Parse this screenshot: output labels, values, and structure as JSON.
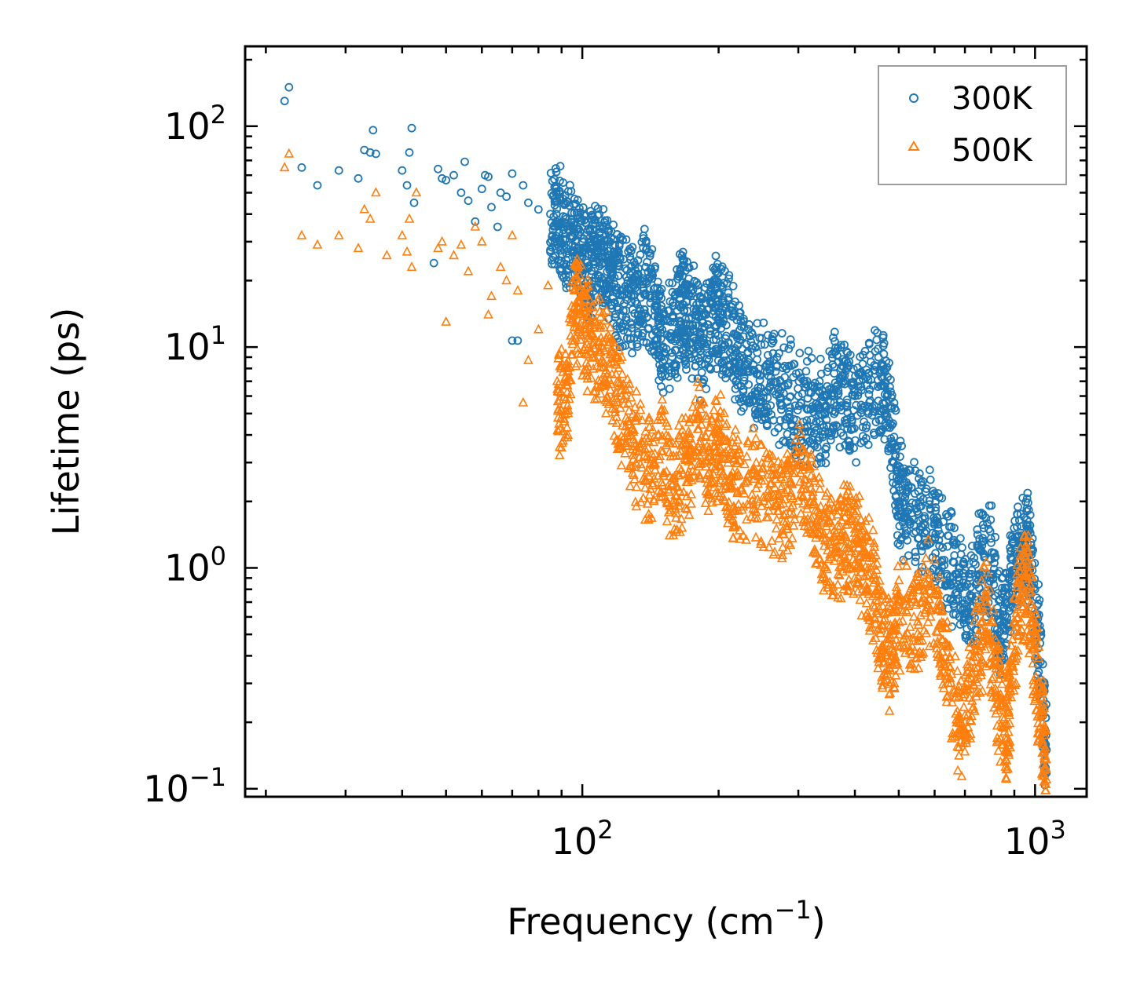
{
  "chart_data": {
    "type": "scatter",
    "title": "",
    "xlabel": "Frequency (cm",
    "xlabel_exponent": "−1",
    "xlabel_suffix": ")",
    "ylabel": "Lifetime (ps)",
    "xscale": "log",
    "yscale": "log",
    "xlim": [
      18,
      1300
    ],
    "ylim": [
      0.092,
      230
    ],
    "x_ticks": [
      {
        "value": 100,
        "base": "10",
        "exp": "2"
      },
      {
        "value": 1000,
        "base": "10",
        "exp": "3"
      }
    ],
    "y_ticks": [
      {
        "value": 0.1,
        "base": "10",
        "exp": "−1"
      },
      {
        "value": 1,
        "base": "10",
        "exp": "0"
      },
      {
        "value": 10,
        "base": "10",
        "exp": "1"
      },
      {
        "value": 100,
        "base": "10",
        "exp": "2"
      }
    ],
    "legend_position": "top-right",
    "series": [
      {
        "name": "300K",
        "marker": "circle-open",
        "color": "#1f77b4",
        "points": [
          [
            22,
            130
          ],
          [
            22.5,
            150
          ],
          [
            24,
            65
          ],
          [
            26,
            54
          ],
          [
            29,
            63
          ],
          [
            32,
            58
          ],
          [
            33,
            78
          ],
          [
            34,
            76
          ],
          [
            34.5,
            96
          ],
          [
            35,
            75
          ],
          [
            40,
            63
          ],
          [
            41,
            54
          ],
          [
            41.5,
            76
          ],
          [
            42,
            98
          ],
          [
            42.5,
            45
          ],
          [
            47,
            24
          ],
          [
            48,
            64
          ],
          [
            49,
            58
          ],
          [
            50,
            57
          ],
          [
            52,
            60
          ],
          [
            54,
            50
          ],
          [
            55,
            69
          ],
          [
            56,
            46
          ],
          [
            58,
            37
          ],
          [
            60,
            52
          ],
          [
            61,
            60
          ],
          [
            62,
            59
          ],
          [
            63,
            43
          ],
          [
            65,
            35
          ],
          [
            66,
            50
          ],
          [
            68,
            48
          ],
          [
            70,
            61
          ],
          [
            70,
            10.7
          ],
          [
            72,
            10.7
          ],
          [
            74,
            54
          ],
          [
            76,
            45
          ],
          [
            80,
            42
          ],
          [
            85,
            40
          ],
          [
            88,
            46
          ],
          [
            92,
            38
          ],
          [
            96,
            34
          ],
          [
            100,
            30
          ],
          [
            104,
            28
          ],
          [
            108,
            31
          ],
          [
            112,
            27
          ],
          [
            116,
            25
          ],
          [
            120,
            21
          ],
          [
            126,
            20
          ],
          [
            132,
            18
          ],
          [
            138,
            23
          ],
          [
            145,
            17
          ],
          [
            150,
            12
          ],
          [
            160,
            13
          ],
          [
            166,
            18
          ],
          [
            170,
            16
          ],
          [
            178,
            14
          ],
          [
            185,
            11
          ],
          [
            195,
            17
          ],
          [
            200,
            15
          ],
          [
            210,
            14
          ],
          [
            220,
            11
          ],
          [
            232,
            9.5
          ],
          [
            245,
            8
          ],
          [
            260,
            7.8
          ],
          [
            280,
            7.3
          ],
          [
            300,
            6
          ],
          [
            320,
            6.2
          ],
          [
            340,
            5.7
          ],
          [
            360,
            7.6
          ],
          [
            380,
            6.8
          ],
          [
            400,
            6
          ],
          [
            430,
            7.6
          ],
          [
            460,
            8.3
          ],
          [
            480,
            5.4
          ],
          [
            500,
            2.5
          ],
          [
            520,
            2.2
          ],
          [
            560,
            1.9
          ],
          [
            600,
            1.6
          ],
          [
            640,
            1.25
          ],
          [
            680,
            0.95
          ],
          [
            720,
            0.75
          ],
          [
            760,
            1.2
          ],
          [
            800,
            1.3
          ],
          [
            840,
            0.55
          ],
          [
            880,
            0.95
          ],
          [
            920,
            1.4
          ],
          [
            960,
            1.65
          ],
          [
            1000,
            0.8
          ],
          [
            1040,
            0.3
          ],
          [
            1060,
            0.15
          ]
        ]
      },
      {
        "name": "500K",
        "marker": "triangle-open",
        "color": "#ff7f0e",
        "points": [
          [
            22,
            65
          ],
          [
            22.5,
            75
          ],
          [
            24,
            32
          ],
          [
            26,
            29
          ],
          [
            29,
            32
          ],
          [
            32,
            28
          ],
          [
            33,
            42
          ],
          [
            34,
            38
          ],
          [
            35,
            50
          ],
          [
            37,
            26
          ],
          [
            40,
            32
          ],
          [
            41,
            27
          ],
          [
            41.5,
            38
          ],
          [
            42,
            23
          ],
          [
            43,
            50
          ],
          [
            48,
            28
          ],
          [
            49,
            30
          ],
          [
            50,
            13
          ],
          [
            52,
            26
          ],
          [
            54,
            29
          ],
          [
            56,
            22
          ],
          [
            58,
            35
          ],
          [
            60,
            30
          ],
          [
            62,
            14
          ],
          [
            63,
            17
          ],
          [
            66,
            23
          ],
          [
            68,
            20
          ],
          [
            70,
            32
          ],
          [
            72,
            18
          ],
          [
            74,
            5.6
          ],
          [
            76,
            8.7
          ],
          [
            80,
            12
          ],
          [
            84,
            19
          ],
          [
            88,
            7
          ],
          [
            92,
            5.8
          ],
          [
            96,
            18
          ],
          [
            100,
            15
          ],
          [
            104,
            12
          ],
          [
            110,
            11
          ],
          [
            116,
            8.5
          ],
          [
            122,
            6
          ],
          [
            130,
            4.2
          ],
          [
            140,
            3.1
          ],
          [
            150,
            3.8
          ],
          [
            160,
            2.6
          ],
          [
            170,
            3.3
          ],
          [
            180,
            4.7
          ],
          [
            190,
            3.4
          ],
          [
            200,
            4.1
          ],
          [
            210,
            3.1
          ],
          [
            220,
            2.6
          ],
          [
            240,
            2.8
          ],
          [
            260,
            2.4
          ],
          [
            280,
            2.2
          ],
          [
            300,
            2.9
          ],
          [
            320,
            2.3
          ],
          [
            340,
            1.6
          ],
          [
            360,
            1.4
          ],
          [
            380,
            1.7
          ],
          [
            400,
            1.5
          ],
          [
            420,
            1.2
          ],
          [
            440,
            0.9
          ],
          [
            460,
            0.55
          ],
          [
            480,
            0.45
          ],
          [
            500,
            0.7
          ],
          [
            540,
            0.6
          ],
          [
            580,
            0.95
          ],
          [
            620,
            0.55
          ],
          [
            660,
            0.28
          ],
          [
            700,
            0.2
          ],
          [
            740,
            0.45
          ],
          [
            780,
            0.7
          ],
          [
            820,
            0.35
          ],
          [
            860,
            0.17
          ],
          [
            880,
            0.3
          ],
          [
            920,
            0.85
          ],
          [
            960,
            1.05
          ],
          [
            1000,
            0.45
          ],
          [
            1040,
            0.2
          ],
          [
            1060,
            0.11
          ]
        ]
      }
    ]
  }
}
